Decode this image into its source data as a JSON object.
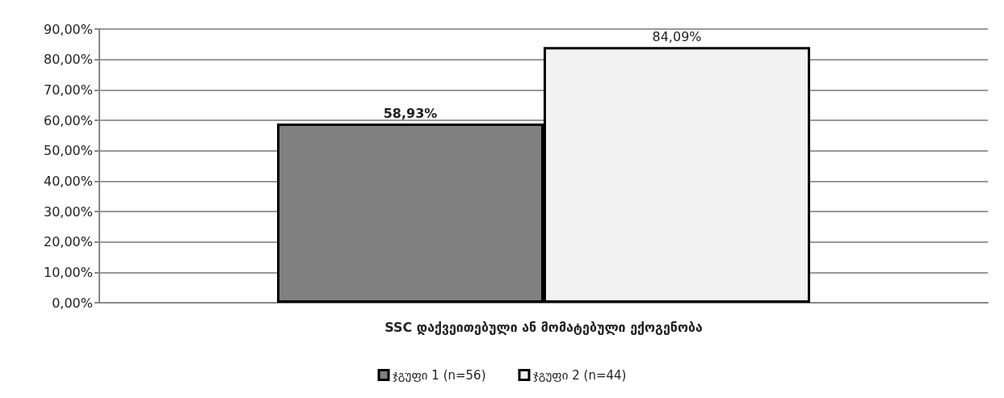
{
  "chart_data": {
    "type": "bar",
    "categories": [
      "SSC დაქვეითებული ან მომატებული ექოგენობა"
    ],
    "series": [
      {
        "name": "ჯგუფი 1 (n=56)",
        "color": "#808080",
        "values": [
          58.93
        ],
        "value_labels": [
          "58,93%"
        ]
      },
      {
        "name": "ჯგუფი 2 (n=44)",
        "color": "#f2f2f2",
        "values": [
          84.09
        ],
        "value_labels": [
          "84,09%"
        ]
      }
    ],
    "ylim": [
      0,
      90
    ],
    "yticks": [
      {
        "value": 0,
        "label": "0,00%"
      },
      {
        "value": 10,
        "label": "10,00%"
      },
      {
        "value": 20,
        "label": "20,00%"
      },
      {
        "value": 30,
        "label": "30,00%"
      },
      {
        "value": 40,
        "label": "40,00%"
      },
      {
        "value": 50,
        "label": "50,00%"
      },
      {
        "value": 60,
        "label": "60,00%"
      },
      {
        "value": 70,
        "label": "70,00%"
      },
      {
        "value": 80,
        "label": "80,00%"
      },
      {
        "value": 90,
        "label": "90,00%"
      }
    ],
    "grid": "y",
    "legend": "bottom"
  }
}
